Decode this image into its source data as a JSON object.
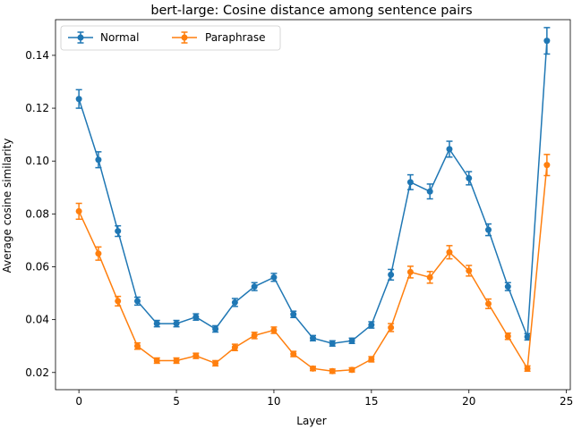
{
  "chart_data": {
    "type": "line",
    "title": "bert-large: Cosine distance among sentence pairs",
    "xlabel": "Layer",
    "ylabel": "Average cosine similarity",
    "xlim": [
      -1.2,
      25.2
    ],
    "ylim": [
      0.0135,
      0.1535
    ],
    "xticks": [
      0,
      5,
      10,
      15,
      20,
      25
    ],
    "yticks": [
      0.02,
      0.04,
      0.06,
      0.08,
      0.1,
      0.12,
      0.14
    ],
    "ytick_labels": [
      "0.02",
      "0.04",
      "0.06",
      "0.08",
      "0.10",
      "0.12",
      "0.14"
    ],
    "grid": false,
    "legend_position": "top-left",
    "x": [
      0,
      1,
      2,
      3,
      4,
      5,
      6,
      7,
      8,
      9,
      10,
      11,
      12,
      13,
      14,
      15,
      16,
      17,
      18,
      19,
      20,
      21,
      22,
      23,
      24
    ],
    "series": [
      {
        "name": "Normal",
        "color": "#1f77b4",
        "values": [
          0.1235,
          0.1005,
          0.0735,
          0.047,
          0.0385,
          0.0385,
          0.041,
          0.0365,
          0.0465,
          0.0525,
          0.056,
          0.042,
          0.033,
          0.031,
          0.032,
          0.038,
          0.057,
          0.092,
          0.0885,
          0.1045,
          0.0935,
          0.074,
          0.0525,
          0.0335,
          0.1455
        ],
        "errors": [
          0.0035,
          0.003,
          0.002,
          0.0015,
          0.0012,
          0.0012,
          0.0012,
          0.0012,
          0.0015,
          0.0015,
          0.0015,
          0.0012,
          0.001,
          0.001,
          0.001,
          0.0012,
          0.002,
          0.0028,
          0.0028,
          0.003,
          0.0025,
          0.0022,
          0.0015,
          0.0012,
          0.005
        ]
      },
      {
        "name": "Paraphrase",
        "color": "#ff7f0e",
        "values": [
          0.081,
          0.065,
          0.047,
          0.03,
          0.0245,
          0.0245,
          0.0263,
          0.0235,
          0.0295,
          0.034,
          0.036,
          0.027,
          0.0215,
          0.0205,
          0.021,
          0.025,
          0.037,
          0.058,
          0.056,
          0.0655,
          0.0585,
          0.046,
          0.0337,
          0.0215,
          0.0985
        ],
        "errors": [
          0.003,
          0.0025,
          0.0018,
          0.0012,
          0.001,
          0.001,
          0.001,
          0.001,
          0.0012,
          0.0012,
          0.0012,
          0.001,
          0.0008,
          0.0008,
          0.0008,
          0.001,
          0.0015,
          0.0022,
          0.0022,
          0.0025,
          0.002,
          0.0018,
          0.0012,
          0.001,
          0.004
        ]
      }
    ]
  }
}
